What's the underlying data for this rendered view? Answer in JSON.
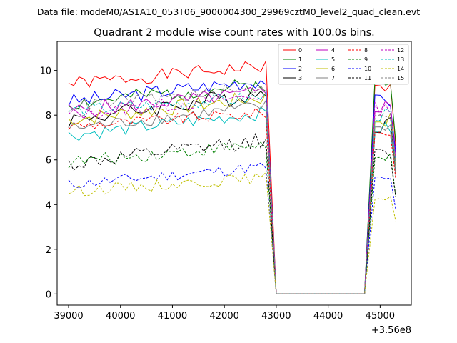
{
  "chart_data": {
    "type": "line",
    "suptitle": "Data file: modeM0/AS1A10_053T06_9000004300_29969cztM0_level2_quad_clean.evt",
    "title": "Quadrant 2 module wise count rates with 100.0s bins.",
    "xlabel": "",
    "ylabel": "",
    "x_offset_label": "+3.56e8",
    "xlim": [
      38780,
      45600
    ],
    "ylim": [
      -0.5,
      11.3
    ],
    "x_ticks": [
      39000,
      40000,
      41000,
      42000,
      43000,
      44000,
      45000
    ],
    "y_ticks": [
      0,
      2,
      4,
      6,
      8,
      10
    ],
    "legend": {
      "position": "top-right",
      "columns": 4
    },
    "series": [
      {
        "name": "0",
        "color": "#ff0000",
        "dash": "solid",
        "base": 9.4,
        "trend": 0.8,
        "amp": 0.3,
        "post": 9.2
      },
      {
        "name": "1",
        "color": "#008000",
        "dash": "solid",
        "base": 8.5,
        "trend": 0.9,
        "amp": 0.35,
        "post": 9.4
      },
      {
        "name": "2",
        "color": "#0000ff",
        "dash": "solid",
        "base": 8.6,
        "trend": 1.0,
        "amp": 0.35,
        "post": 8.6
      },
      {
        "name": "3",
        "color": "#000000",
        "dash": "solid",
        "base": 7.8,
        "trend": 1.2,
        "amp": 0.4,
        "post": 7.6
      },
      {
        "name": "4",
        "color": "#bf00bf",
        "dash": "solid",
        "base": 8.2,
        "trend": 0.8,
        "amp": 0.35,
        "post": 8.4
      },
      {
        "name": "5",
        "color": "#00bfbf",
        "dash": "solid",
        "base": 7.1,
        "trend": 1.0,
        "amp": 0.3,
        "post": 7.4
      },
      {
        "name": "6",
        "color": "#bfbf00",
        "dash": "solid",
        "base": 7.8,
        "trend": 1.0,
        "amp": 0.35,
        "post": 7.8
      },
      {
        "name": "7",
        "color": "#808080",
        "dash": "solid",
        "base": 7.4,
        "trend": 1.0,
        "amp": 0.3,
        "post": 7.5
      },
      {
        "name": "8",
        "color": "#ff0000",
        "dash": "dashed",
        "base": 7.5,
        "trend": 0.6,
        "amp": 0.25,
        "post": 7.2
      },
      {
        "name": "9",
        "color": "#008000",
        "dash": "dashed",
        "base": 5.9,
        "trend": 0.8,
        "amp": 0.3,
        "post": 6.0
      },
      {
        "name": "10",
        "color": "#0000ff",
        "dash": "dashed",
        "base": 4.9,
        "trend": 0.8,
        "amp": 0.25,
        "post": 5.1
      },
      {
        "name": "11",
        "color": "#000000",
        "dash": "dashed",
        "base": 5.8,
        "trend": 1.1,
        "amp": 0.35,
        "post": 6.2
      },
      {
        "name": "12",
        "color": "#bf00bf",
        "dash": "dashed",
        "base": 8.0,
        "trend": 0.9,
        "amp": 0.3,
        "post": 8.3
      },
      {
        "name": "13",
        "color": "#00bfbf",
        "dash": "dashed",
        "base": 8.2,
        "trend": 0.6,
        "amp": 0.3,
        "post": 8.0
      },
      {
        "name": "14",
        "color": "#bfbf00",
        "dash": "dashed",
        "base": 4.6,
        "trend": 0.6,
        "amp": 0.25,
        "post": 4.4
      },
      {
        "name": "15",
        "color": "#808080",
        "dash": "dashed",
        "base": 8.4,
        "trend": 0.8,
        "amp": 0.3,
        "post": 8.1
      }
    ],
    "time_grid": {
      "start": 39000,
      "step": 100,
      "active_end": 42800,
      "drop_at": 43000,
      "gap_end": 44700,
      "resume": 44900,
      "end": 45300
    }
  }
}
